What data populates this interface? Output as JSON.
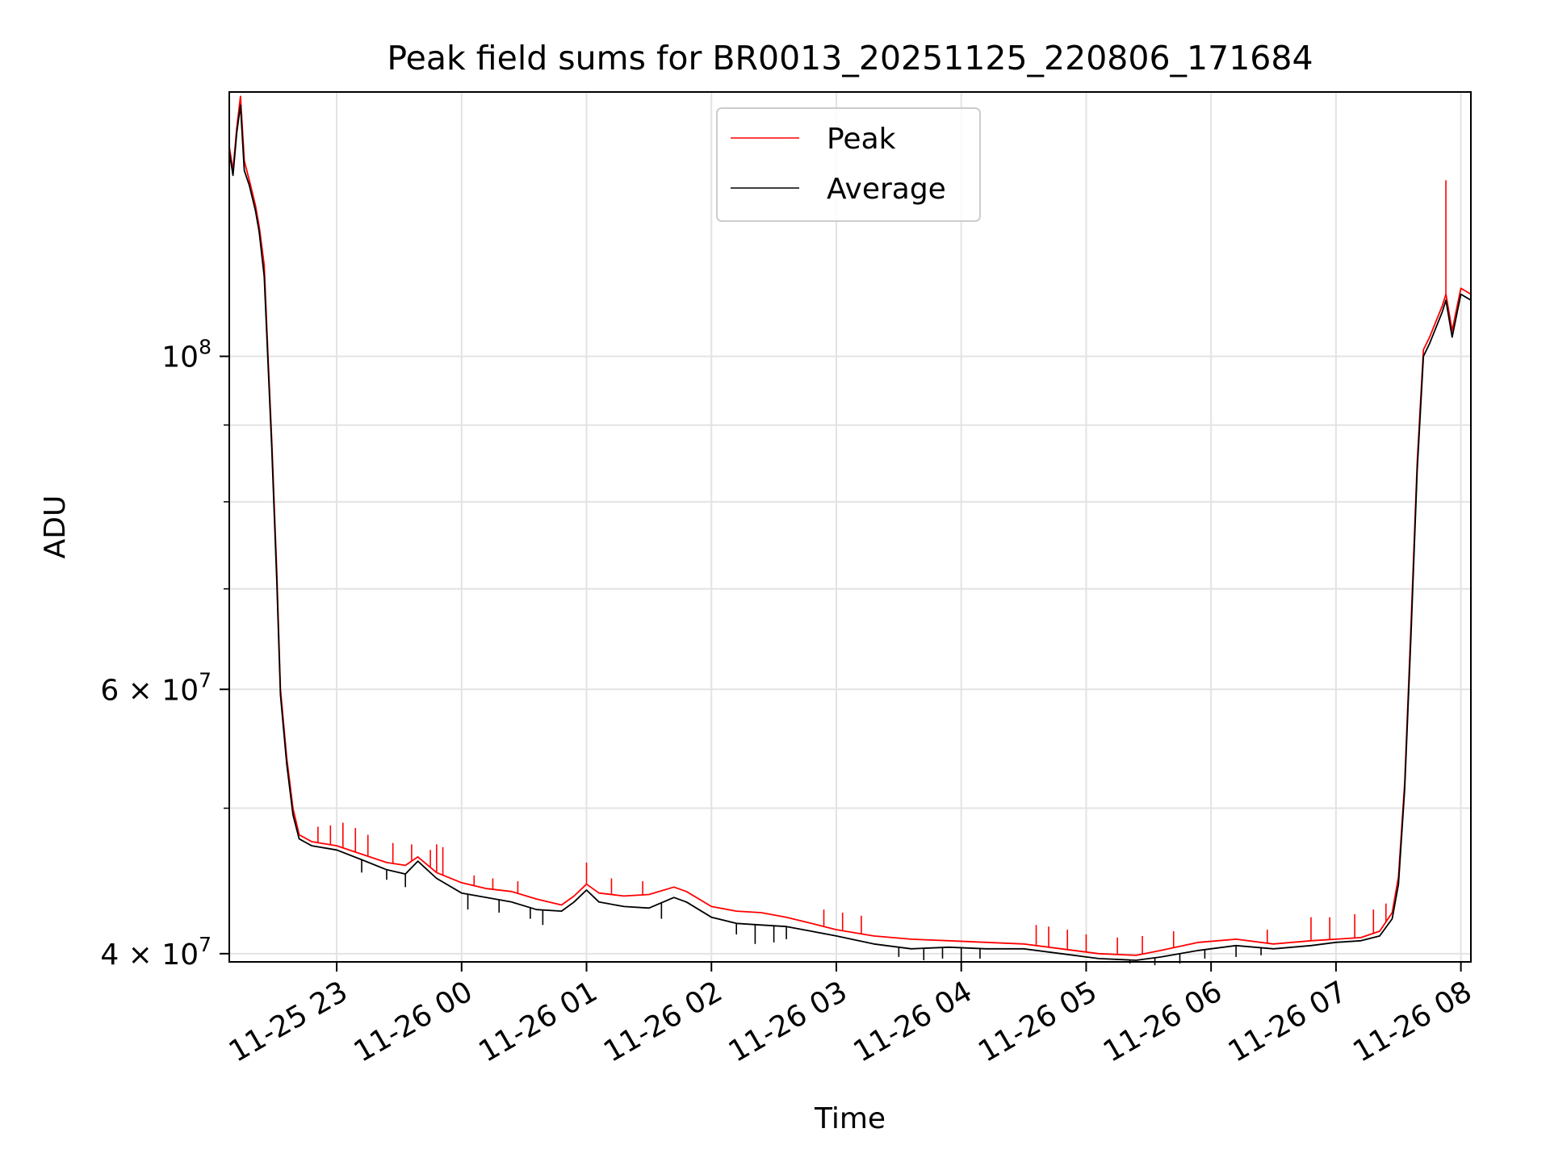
{
  "chart_data": {
    "type": "line",
    "title": "Peak field sums for BR0013_20251125_220806_171684",
    "xlabel": "Time",
    "ylabel": "ADU",
    "yscale": "log",
    "grid": true,
    "legend_position": "top-center",
    "x_range_hours": [
      22.14,
      32.08
    ],
    "ylim": [
      39500000,
      150000000
    ],
    "x_ticks": [
      {
        "hour": 23,
        "label": "11-25 23"
      },
      {
        "hour": 24,
        "label": "11-26 00"
      },
      {
        "hour": 25,
        "label": "11-26 01"
      },
      {
        "hour": 26,
        "label": "11-26 02"
      },
      {
        "hour": 27,
        "label": "11-26 03"
      },
      {
        "hour": 28,
        "label": "11-26 04"
      },
      {
        "hour": 29,
        "label": "11-26 05"
      },
      {
        "hour": 30,
        "label": "11-26 06"
      },
      {
        "hour": 31,
        "label": "11-26 07"
      },
      {
        "hour": 32,
        "label": "11-26 08"
      }
    ],
    "y_major_ticks": [
      {
        "value": 100000000,
        "base": "10",
        "exp": "8"
      },
      {
        "value": 60000000,
        "base": "6 × 10",
        "exp": "7"
      },
      {
        "value": 40000000,
        "base": "4 × 10",
        "exp": "7"
      }
    ],
    "y_minor_ticks": [
      50000000,
      70000000,
      80000000,
      90000000
    ],
    "series": [
      {
        "name": "Peak",
        "color": "#ff0000",
        "points": [
          [
            22.14,
            138000000
          ],
          [
            22.17,
            133000000
          ],
          [
            22.2,
            142000000
          ],
          [
            22.23,
            149000000
          ],
          [
            22.26,
            135000000
          ],
          [
            22.3,
            131000000
          ],
          [
            22.35,
            126000000
          ],
          [
            22.38,
            122000000
          ],
          [
            22.42,
            115000000
          ],
          [
            22.45,
            100000000
          ],
          [
            22.48,
            88000000
          ],
          [
            22.52,
            72000000
          ],
          [
            22.55,
            60000000
          ],
          [
            22.6,
            54000000
          ],
          [
            22.65,
            50000000
          ],
          [
            22.7,
            48000000
          ],
          [
            22.8,
            47500000
          ],
          [
            23.0,
            47200000
          ],
          [
            23.2,
            46600000
          ],
          [
            23.4,
            46000000
          ],
          [
            23.55,
            45800000
          ],
          [
            23.65,
            46400000
          ],
          [
            23.8,
            45300000
          ],
          [
            24.0,
            44600000
          ],
          [
            24.2,
            44200000
          ],
          [
            24.4,
            44000000
          ],
          [
            24.6,
            43500000
          ],
          [
            24.8,
            43100000
          ],
          [
            24.9,
            43700000
          ],
          [
            25.0,
            44500000
          ],
          [
            25.1,
            43900000
          ],
          [
            25.3,
            43700000
          ],
          [
            25.5,
            43800000
          ],
          [
            25.7,
            44300000
          ],
          [
            25.8,
            44000000
          ],
          [
            26.0,
            43000000
          ],
          [
            26.2,
            42700000
          ],
          [
            26.4,
            42600000
          ],
          [
            26.6,
            42300000
          ],
          [
            26.8,
            41900000
          ],
          [
            27.0,
            41500000
          ],
          [
            27.3,
            41100000
          ],
          [
            27.6,
            40900000
          ],
          [
            27.9,
            40800000
          ],
          [
            28.2,
            40700000
          ],
          [
            28.5,
            40600000
          ],
          [
            28.8,
            40300000
          ],
          [
            29.1,
            40000000
          ],
          [
            29.4,
            39900000
          ],
          [
            29.6,
            40200000
          ],
          [
            29.9,
            40700000
          ],
          [
            30.2,
            40900000
          ],
          [
            30.5,
            40600000
          ],
          [
            30.8,
            40800000
          ],
          [
            31.0,
            40900000
          ],
          [
            31.2,
            41000000
          ],
          [
            31.35,
            41400000
          ],
          [
            31.45,
            42600000
          ],
          [
            31.5,
            45000000
          ],
          [
            31.55,
            52000000
          ],
          [
            31.6,
            66000000
          ],
          [
            31.65,
            85000000
          ],
          [
            31.7,
            101000000
          ],
          [
            31.75,
            103000000
          ],
          [
            31.85,
            108000000
          ],
          [
            31.88,
            110000000
          ],
          [
            31.93,
            104000000
          ],
          [
            31.97,
            108000000
          ],
          [
            32.0,
            111000000
          ],
          [
            32.04,
            110500000
          ],
          [
            32.08,
            110000000
          ]
        ],
        "spikes": [
          [
            22.85,
            48600000
          ],
          [
            22.95,
            48700000
          ],
          [
            23.05,
            48900000
          ],
          [
            23.15,
            48500000
          ],
          [
            23.25,
            48000000
          ],
          [
            23.45,
            47400000
          ],
          [
            23.6,
            47300000
          ],
          [
            23.75,
            46900000
          ],
          [
            23.8,
            47300000
          ],
          [
            23.85,
            47100000
          ],
          [
            24.1,
            45100000
          ],
          [
            24.25,
            44900000
          ],
          [
            24.45,
            44700000
          ],
          [
            25.0,
            46000000
          ],
          [
            25.2,
            44900000
          ],
          [
            25.45,
            44700000
          ],
          [
            26.9,
            42800000
          ],
          [
            27.05,
            42600000
          ],
          [
            27.2,
            42400000
          ],
          [
            28.6,
            41800000
          ],
          [
            28.7,
            41700000
          ],
          [
            28.85,
            41500000
          ],
          [
            29.0,
            41200000
          ],
          [
            29.25,
            41000000
          ],
          [
            29.45,
            41100000
          ],
          [
            29.7,
            41400000
          ],
          [
            30.45,
            41500000
          ],
          [
            30.8,
            42300000
          ],
          [
            30.95,
            42300000
          ],
          [
            31.15,
            42500000
          ],
          [
            31.3,
            42800000
          ],
          [
            31.4,
            43200000
          ],
          [
            31.88,
            131000000
          ]
        ]
      },
      {
        "name": "Average",
        "color": "#000000",
        "points": [
          [
            22.14,
            137000000
          ],
          [
            22.17,
            132000000
          ],
          [
            22.2,
            141000000
          ],
          [
            22.23,
            147000000
          ],
          [
            22.26,
            133000000
          ],
          [
            22.3,
            130000000
          ],
          [
            22.35,
            125000000
          ],
          [
            22.38,
            121000000
          ],
          [
            22.42,
            113000000
          ],
          [
            22.45,
            99000000
          ],
          [
            22.48,
            87000000
          ],
          [
            22.52,
            71000000
          ],
          [
            22.55,
            59500000
          ],
          [
            22.6,
            53500000
          ],
          [
            22.65,
            49500000
          ],
          [
            22.7,
            47700000
          ],
          [
            22.8,
            47200000
          ],
          [
            23.0,
            46900000
          ],
          [
            23.2,
            46200000
          ],
          [
            23.4,
            45500000
          ],
          [
            23.55,
            45200000
          ],
          [
            23.65,
            46100000
          ],
          [
            23.8,
            44900000
          ],
          [
            24.0,
            43900000
          ],
          [
            24.2,
            43600000
          ],
          [
            24.4,
            43300000
          ],
          [
            24.6,
            42800000
          ],
          [
            24.8,
            42700000
          ],
          [
            24.9,
            43300000
          ],
          [
            25.0,
            44100000
          ],
          [
            25.1,
            43300000
          ],
          [
            25.3,
            43000000
          ],
          [
            25.5,
            42900000
          ],
          [
            25.7,
            43600000
          ],
          [
            25.8,
            43300000
          ],
          [
            26.0,
            42300000
          ],
          [
            26.2,
            41900000
          ],
          [
            26.4,
            41800000
          ],
          [
            26.6,
            41700000
          ],
          [
            26.8,
            41400000
          ],
          [
            27.0,
            41100000
          ],
          [
            27.3,
            40600000
          ],
          [
            27.6,
            40300000
          ],
          [
            27.9,
            40400000
          ],
          [
            28.2,
            40300000
          ],
          [
            28.5,
            40300000
          ],
          [
            28.8,
            40000000
          ],
          [
            29.1,
            39700000
          ],
          [
            29.4,
            39600000
          ],
          [
            29.6,
            39800000
          ],
          [
            29.9,
            40200000
          ],
          [
            30.2,
            40500000
          ],
          [
            30.5,
            40300000
          ],
          [
            30.8,
            40500000
          ],
          [
            31.0,
            40700000
          ],
          [
            31.2,
            40800000
          ],
          [
            31.35,
            41100000
          ],
          [
            31.45,
            42200000
          ],
          [
            31.5,
            44500000
          ],
          [
            31.55,
            51500000
          ],
          [
            31.6,
            65000000
          ],
          [
            31.65,
            84000000
          ],
          [
            31.7,
            100000000
          ],
          [
            31.75,
            102000000
          ],
          [
            31.85,
            107000000
          ],
          [
            31.88,
            109000000
          ],
          [
            31.93,
            103000000
          ],
          [
            31.97,
            107000000
          ],
          [
            32.0,
            110000000
          ],
          [
            32.04,
            109500000
          ],
          [
            32.08,
            109000000
          ]
        ],
        "spikes": [
          [
            23.2,
            45300000
          ],
          [
            23.4,
            44800000
          ],
          [
            23.55,
            44300000
          ],
          [
            24.05,
            42800000
          ],
          [
            24.3,
            42600000
          ],
          [
            24.55,
            42200000
          ],
          [
            24.65,
            41800000
          ],
          [
            25.6,
            42200000
          ],
          [
            26.2,
            41200000
          ],
          [
            26.35,
            40600000
          ],
          [
            26.5,
            40700000
          ],
          [
            26.6,
            40900000
          ],
          [
            27.5,
            39800000
          ],
          [
            27.7,
            39600000
          ],
          [
            27.85,
            39700000
          ],
          [
            28.0,
            39500000
          ],
          [
            28.15,
            39700000
          ],
          [
            29.35,
            39400000
          ],
          [
            29.55,
            39300000
          ],
          [
            29.75,
            39400000
          ],
          [
            29.95,
            39700000
          ],
          [
            30.2,
            39800000
          ],
          [
            30.4,
            39900000
          ]
        ]
      }
    ]
  }
}
